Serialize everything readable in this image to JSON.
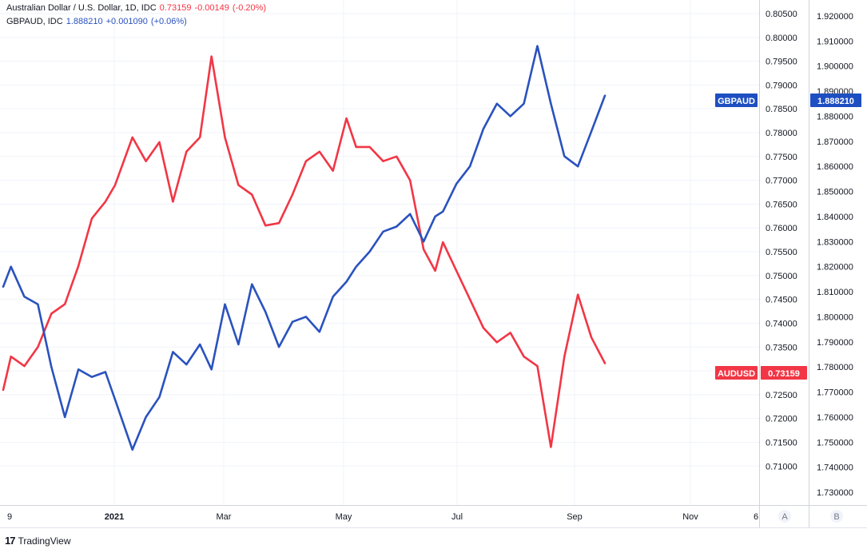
{
  "legend": {
    "line1": {
      "name": "Australian Dollar / U.S. Dollar, 1D, IDC",
      "value": "0.73159",
      "change": "-0.00149",
      "pct": "(-0.20%)",
      "color": "#f23645"
    },
    "line2": {
      "name": "GBPAUD, IDC",
      "value": "1.888210",
      "change": "+0.001090",
      "pct": "(+0.06%)",
      "color": "#2a52be"
    }
  },
  "tags": {
    "gbpaud": {
      "label": "GBPAUD",
      "value": "1.888210",
      "color": "#1e4fc2"
    },
    "audusd": {
      "label": "AUDUSD",
      "value": "0.73159",
      "color": "#f23645"
    }
  },
  "scale_buttons": {
    "a": "A",
    "b": "B"
  },
  "brand": {
    "logo": "17",
    "name": "TradingView"
  },
  "chart_data": {
    "type": "line",
    "x_tick_labels": [
      "9",
      "2021",
      "Mar",
      "May",
      "Jul",
      "Sep",
      "Nov",
      "6"
    ],
    "axes": {
      "A": {
        "ticks": [
          "0.80500",
          "0.80000",
          "0.79500",
          "0.79000",
          "0.78500",
          "0.78000",
          "0.77500",
          "0.77000",
          "0.76500",
          "0.76000",
          "0.75500",
          "0.75000",
          "0.74500",
          "0.74000",
          "0.73500",
          "0.73000",
          "0.72500",
          "0.72000",
          "0.71500",
          "0.71000"
        ],
        "ylim": [
          0.7025,
          0.8065
        ]
      },
      "B": {
        "ticks": [
          "1.920000",
          "1.910000",
          "1.900000",
          "1.890000",
          "1.880000",
          "1.870000",
          "1.860000",
          "1.850000",
          "1.840000",
          "1.830000",
          "1.820000",
          "1.810000",
          "1.800000",
          "1.790000",
          "1.780000",
          "1.770000",
          "1.760000",
          "1.750000",
          "1.740000",
          "1.730000"
        ],
        "ylim": [
          1.7262,
          1.9238
        ]
      }
    },
    "grid": true,
    "series": [
      {
        "name": "AUDUSD",
        "axis": "A",
        "color": "#f23645",
        "x": [
          "2020-11-09",
          "2020-11-13",
          "2020-11-20",
          "2020-11-27",
          "2020-12-04",
          "2020-12-11",
          "2020-12-18",
          "2020-12-25",
          "2021-01-01",
          "2021-01-06",
          "2021-01-15",
          "2021-01-22",
          "2021-01-29",
          "2021-02-05",
          "2021-02-12",
          "2021-02-19",
          "2021-02-25",
          "2021-03-04",
          "2021-03-11",
          "2021-03-18",
          "2021-03-25",
          "2021-04-01",
          "2021-04-08",
          "2021-04-15",
          "2021-04-22",
          "2021-04-29",
          "2021-05-06",
          "2021-05-11",
          "2021-05-18",
          "2021-05-25",
          "2021-06-01",
          "2021-06-08",
          "2021-06-15",
          "2021-06-21",
          "2021-06-25",
          "2021-07-02",
          "2021-07-09",
          "2021-07-16",
          "2021-07-23",
          "2021-07-30",
          "2021-08-06",
          "2021-08-13",
          "2021-08-20",
          "2021-08-27",
          "2021-09-03",
          "2021-09-10",
          "2021-09-17"
        ],
        "values": [
          0.726,
          0.733,
          0.731,
          0.735,
          0.742,
          0.744,
          0.752,
          0.762,
          0.7655,
          0.769,
          0.779,
          0.774,
          0.778,
          0.7655,
          0.776,
          0.779,
          0.796,
          0.779,
          0.769,
          0.767,
          0.7605,
          0.761,
          0.767,
          0.774,
          0.776,
          0.772,
          0.783,
          0.777,
          0.777,
          0.774,
          0.775,
          0.77,
          0.7555,
          0.751,
          0.757,
          0.751,
          0.745,
          0.739,
          0.736,
          0.738,
          0.733,
          0.731,
          0.714,
          0.733,
          0.746,
          0.737,
          0.7316
        ]
      },
      {
        "name": "GBPAUD",
        "axis": "B",
        "color": "#2a52be",
        "x": [
          "2020-11-09",
          "2020-11-13",
          "2020-11-20",
          "2020-11-27",
          "2020-12-04",
          "2020-12-11",
          "2020-12-18",
          "2020-12-25",
          "2021-01-01",
          "2021-01-06",
          "2021-01-15",
          "2021-01-22",
          "2021-01-29",
          "2021-02-05",
          "2021-02-12",
          "2021-02-19",
          "2021-02-25",
          "2021-03-04",
          "2021-03-11",
          "2021-03-18",
          "2021-03-25",
          "2021-04-01",
          "2021-04-08",
          "2021-04-15",
          "2021-04-22",
          "2021-04-29",
          "2021-05-06",
          "2021-05-11",
          "2021-05-18",
          "2021-05-25",
          "2021-06-01",
          "2021-06-08",
          "2021-06-15",
          "2021-06-21",
          "2021-06-25",
          "2021-07-02",
          "2021-07-09",
          "2021-07-16",
          "2021-07-23",
          "2021-07-30",
          "2021-08-06",
          "2021-08-13",
          "2021-08-20",
          "2021-08-27",
          "2021-09-03",
          "2021-09-10",
          "2021-09-17"
        ],
        "values": [
          1.812,
          1.82,
          1.808,
          1.805,
          1.78,
          1.76,
          1.779,
          1.776,
          1.778,
          1.767,
          1.747,
          1.76,
          1.768,
          1.786,
          1.781,
          1.789,
          1.779,
          1.805,
          1.789,
          1.813,
          1.802,
          1.788,
          1.798,
          1.8,
          1.794,
          1.808,
          1.814,
          1.82,
          1.826,
          1.834,
          1.836,
          1.841,
          1.83,
          1.84,
          1.842,
          1.853,
          1.86,
          1.875,
          1.885,
          1.88,
          1.885,
          1.908,
          1.885,
          1.864,
          1.86,
          1.874,
          1.8882
        ]
      }
    ]
  }
}
